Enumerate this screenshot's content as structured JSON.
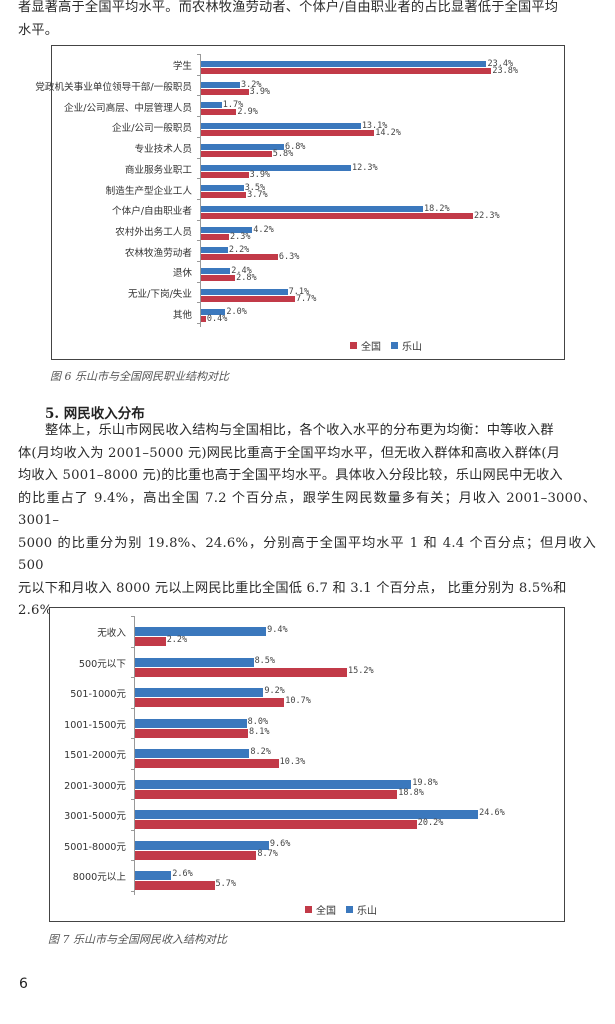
{
  "text": {
    "intro_line1": "者显著高于全国平均水平。而农林牧渔劳动者、个体户/自由职业者的占比显著低于全国平均",
    "intro_line2": "水平。",
    "section_title": "5. 网民收入分布",
    "para_lines": [
      "整体上，乐山市网民收入结构与全国相比，各个收入水平的分布更为均衡：中等收入群",
      "体(月均收入为 2001–5000 元)网民比重高于全国平均水平，但无收入群体和高收入群体(月",
      "均收入 5001–8000 元)的比重也高于全国平均水平。具体收入分段比较，乐山网民中无收入",
      "的比重占了 9.4%，高出全国 7.2 个百分点，跟学生网民数量多有关；月收入 2001–3000、3001–",
      "5000 的比重分为别 19.8%、24.6%，分别高于全国平均水平 1 和 4.4 个百分点；但月收入 500",
      "元以下和月收入 8000 元以上网民比重比全国低 6.7 和 3.1 个百分点， 比重分别为 8.5%和",
      "2.6%。"
    ],
    "caption_fig6": "图 6  乐山市与全国网民职业结构对比",
    "caption_fig7": "图 7  乐山市与全国网民收入结构对比",
    "page_number": "6"
  },
  "colors": {
    "leshan": "#3b78bd",
    "national": "#c23a48"
  },
  "chart_data": [
    {
      "type": "bar",
      "orientation": "horizontal",
      "title": "乐山市与全国网民职业结构对比",
      "categories": [
        "学生",
        "党政机关事业单位领导干部/一般职员",
        "企业/公司高层、中层管理人员",
        "企业/公司一般职员",
        "专业技术人员",
        "商业服务业职工",
        "制造生产型企业工人",
        "个体户/自由职业者",
        "农村外出务工人员",
        "农林牧渔劳动者",
        "退休",
        "无业/下岗/失业",
        "其他"
      ],
      "series": [
        {
          "name": "乐山",
          "color": "#3b78bd",
          "values": [
            23.4,
            3.2,
            1.7,
            13.1,
            6.8,
            12.3,
            3.5,
            18.2,
            4.2,
            2.2,
            2.4,
            7.1,
            2.0
          ],
          "labels": [
            "23.4%",
            "3.2%",
            "1.7%",
            "13.1%",
            "6.8%",
            "12.3%",
            "3.5%",
            "18.2%",
            "4.2%",
            "2.2%",
            "2.4%",
            "7.1%",
            "2.0%"
          ]
        },
        {
          "name": "全国",
          "color": "#c23a48",
          "values": [
            23.8,
            3.9,
            2.9,
            14.2,
            5.8,
            3.9,
            3.7,
            22.3,
            2.3,
            6.3,
            2.8,
            7.7,
            0.4
          ],
          "labels": [
            "23.8%",
            "3.9%",
            "2.9%",
            "14.2%",
            "5.8%",
            "3.9%",
            "3.7%",
            "22.3%",
            "2.3%",
            "6.3%",
            "2.8%",
            "7.7%",
            "0.4%"
          ]
        }
      ],
      "legend": [
        "全国",
        "乐山"
      ],
      "legend_position": "bottom",
      "xlim": [
        0,
        24
      ],
      "grid": false
    },
    {
      "type": "bar",
      "orientation": "horizontal",
      "title": "乐山市与全国网民收入结构对比",
      "categories": [
        "无收入",
        "500元以下",
        "501-1000元",
        "1001-1500元",
        "1501-2000元",
        "2001-3000元",
        "3001-5000元",
        "5001-8000元",
        "8000元以上"
      ],
      "series": [
        {
          "name": "乐山",
          "color": "#3b78bd",
          "values": [
            9.4,
            8.5,
            9.2,
            8.0,
            8.2,
            19.8,
            24.6,
            9.6,
            2.6
          ],
          "labels": [
            "9.4%",
            "8.5%",
            "9.2%",
            "8.0%",
            "8.2%",
            "19.8%",
            "24.6%",
            "9.6%",
            "2.6%"
          ]
        },
        {
          "name": "全国",
          "color": "#c23a48",
          "values": [
            2.2,
            15.2,
            10.7,
            8.1,
            10.3,
            18.8,
            20.2,
            8.7,
            5.7
          ],
          "labels": [
            "2.2%",
            "15.2%",
            "10.7%",
            "8.1%",
            "10.3%",
            "18.8%",
            "20.2%",
            "8.7%",
            "5.7%"
          ]
        }
      ],
      "legend": [
        "全国",
        "乐山"
      ],
      "legend_position": "bottom",
      "xlim": [
        0,
        30
      ],
      "grid": false
    }
  ]
}
